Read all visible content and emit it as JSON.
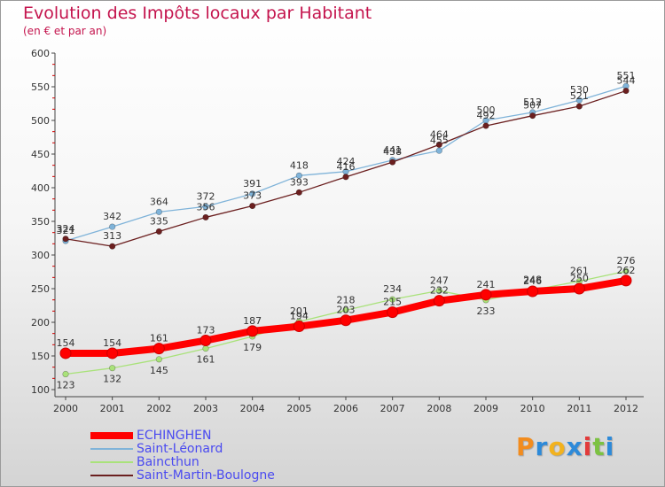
{
  "chart_data": {
    "type": "line",
    "title": "Evolution des Impôts locaux par Habitant",
    "subtitle": "(en € et par an)",
    "xlabel": "",
    "ylabel": "",
    "ylim": [
      100,
      600
    ],
    "yticks": [
      100,
      150,
      200,
      250,
      300,
      350,
      400,
      450,
      500,
      550,
      600
    ],
    "categories": [
      "2000",
      "2001",
      "2002",
      "2003",
      "2004",
      "2005",
      "2006",
      "2007",
      "2008",
      "2009",
      "2010",
      "2011",
      "2012"
    ],
    "grid": false,
    "legend_position": "bottom-left",
    "series": [
      {
        "name": "ECHINGHEN",
        "color": "#ff0000",
        "values": [
          154,
          154,
          161,
          173,
          187,
          194,
          203,
          215,
          232,
          241,
          246,
          250,
          262
        ]
      },
      {
        "name": "Saint-Léonard",
        "color": "#7fb3d9",
        "values": [
          321,
          342,
          364,
          372,
          391,
          418,
          424,
          441,
          455,
          500,
          512,
          530,
          551
        ]
      },
      {
        "name": "Baincthun",
        "color": "#a9e27a",
        "values": [
          123,
          132,
          145,
          161,
          179,
          201,
          218,
          234,
          247,
          233,
          248,
          261,
          276
        ]
      },
      {
        "name": "Saint-Martin-Boulogne",
        "color": "#6b1f1f",
        "values": [
          324,
          313,
          335,
          356,
          373,
          393,
          416,
          438,
          464,
          492,
          507,
          521,
          544
        ]
      }
    ]
  },
  "logo": {
    "letters": [
      "P",
      "r",
      "o",
      "x",
      "i",
      "t",
      "i"
    ],
    "colors": [
      "#f28c1e",
      "#2d8ad9",
      "#f2b21e",
      "#2d8ad9",
      "#e23a3a",
      "#7cc242",
      "#2d8ad9"
    ]
  }
}
